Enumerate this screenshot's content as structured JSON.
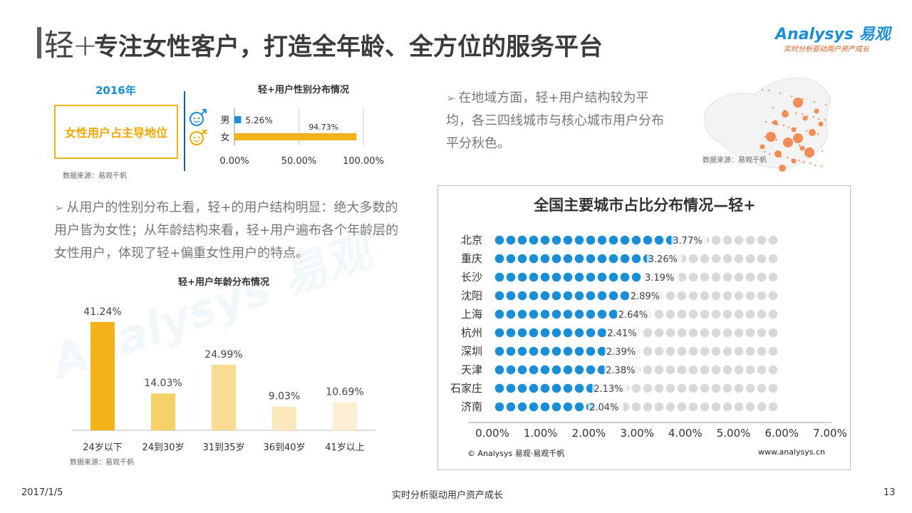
{
  "header": {
    "logo_text": "轻+",
    "title": "专注女性客户，打造全年龄、全方位的服务平台",
    "brand_name": "Analysys 易观",
    "brand_slogan": "实时分析驱动用户资产成长"
  },
  "gender_panel": {
    "year": "2016年",
    "highlight": "女性用户占主导地位",
    "source": "数据来源：易观千帆"
  },
  "age_panel": {
    "source": "数据来源：易观千帆"
  },
  "map_panel": {
    "source": "数据来源：易观千帆"
  },
  "bullets": {
    "region": "在地域方面，轻+用户结构较为平均，各三四线城市与核心城市用户分布平分秋色。",
    "gender": "从用户的性别分布上看，轻+的用户结构明显：绝大多数的用户皆为女性；从年龄结构来看，轻+用户遍布各个年龄层的女性用户，体现了轻+偏重女性用户的特点。"
  },
  "city_panel": {
    "copyright": "© Analysys 易观·易观千帆",
    "website": "www.analysys.cn"
  },
  "footer": {
    "date": "2017/1/5",
    "slogan": "实时分析驱动用户资产成长",
    "page": "13"
  },
  "colors": {
    "blue": "#1a8fd6",
    "orange": "#f3b21a",
    "grey_dot": "#d9d9d9",
    "map_dot": "#f07a3a"
  },
  "chart_data": [
    {
      "id": "gender",
      "type": "bar",
      "orientation": "horizontal",
      "title": "轻+用户性别分布情况",
      "categories": [
        "男",
        "女"
      ],
      "values": [
        5.26,
        94.73
      ],
      "value_labels": [
        "5.26%",
        "94.73%"
      ],
      "xlim": [
        0,
        100
      ],
      "xticks": [
        "0.00%",
        "50.00%",
        "100.00%"
      ],
      "colors": [
        "#1a8fd6",
        "#f3b21a"
      ]
    },
    {
      "id": "age",
      "type": "bar",
      "title": "轻+用户年龄分布情况",
      "categories": [
        "24岁以下",
        "24到30岁",
        "31到35岁",
        "36到40岁",
        "41岁以上"
      ],
      "values": [
        41.24,
        14.03,
        24.99,
        9.03,
        10.69
      ],
      "value_labels": [
        "41.24%",
        "14.03%",
        "24.99%",
        "9.03%",
        "10.69%"
      ],
      "ylim": [
        0,
        45
      ],
      "colors": [
        "#f3b21a",
        "#f6d068",
        "#f8dc96",
        "#fae7bb",
        "#fcefd4"
      ]
    },
    {
      "id": "city",
      "type": "bar",
      "orientation": "horizontal",
      "title": "全国主要城市占比分布情况—轻+",
      "categories": [
        "北京",
        "重庆",
        "长沙",
        "沈阳",
        "上海",
        "杭州",
        "深圳",
        "天津",
        "石家庄",
        "济南"
      ],
      "values": [
        3.77,
        3.26,
        3.19,
        2.89,
        2.64,
        2.41,
        2.39,
        2.38,
        2.13,
        2.04
      ],
      "value_labels": [
        "3.77%",
        "3.26%",
        "3.19%",
        "2.89%",
        "2.64%",
        "2.41%",
        "2.39%",
        "2.38%",
        "2.13%",
        "2.04%"
      ],
      "xlim": [
        0,
        7
      ],
      "xticks": [
        "0.00%",
        "1.00%",
        "2.00%",
        "3.00%",
        "4.00%",
        "5.00%",
        "6.00%",
        "7.00%"
      ]
    }
  ]
}
